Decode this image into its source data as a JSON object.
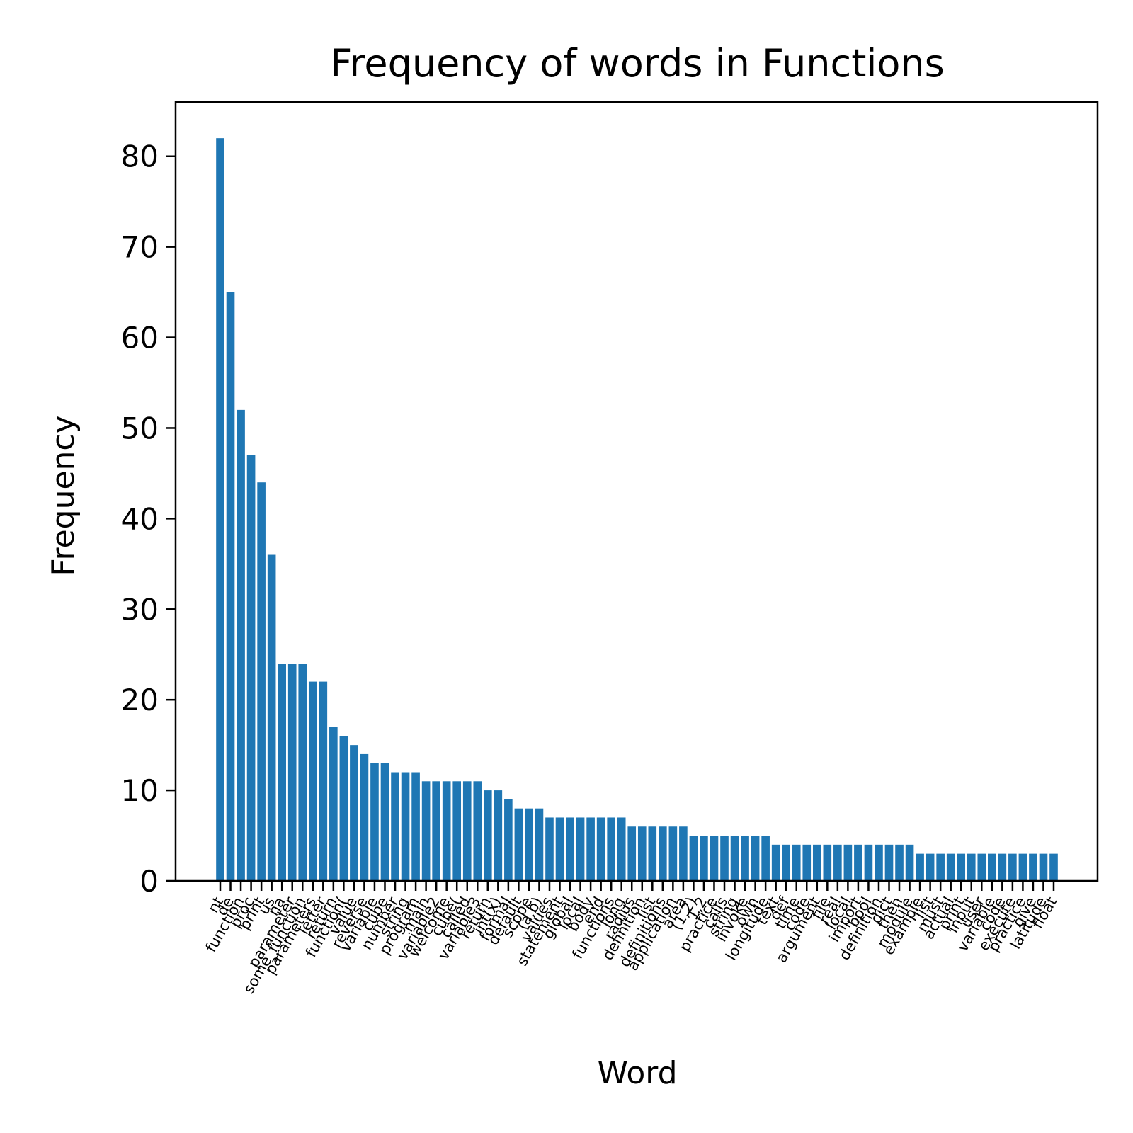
{
  "chart_data": {
    "type": "bar",
    "title": "Frequency of words in Functions",
    "xlabel": "Word",
    "ylabel": "Frequency",
    "ylim": [
      0,
      86
    ],
    "yticks": [
      0,
      10,
      20,
      30,
      40,
      50,
      60,
      70,
      80
    ],
    "bar_color": "#1f77b4",
    "categories": [
      "nt",
      "de",
      "function",
      "proc",
      "print",
      "us",
      "na",
      "parameter",
      "some_function",
      "parameters",
      "letter",
      "return",
      "function(",
      "value",
      "reverse",
      "variable",
      "cube",
      "number",
      "string",
      "program",
      "main",
      "variable2",
      "welcome",
      "cube(",
      "called",
      "variable3",
      "return",
      "int(x)",
      "formal",
      "default",
      "scope",
      "(a,b)",
      "values",
      "statement",
      "global",
      "local",
      "body",
      "end",
      "functions",
      "long",
      "radius",
      "definition",
      "list",
      "definitions",
      "application",
      "area",
      "(1,2)",
      "1,2",
      "practice",
      "calls",
      "string",
      "invoke",
      "own",
      "longitude",
      "text",
      "def",
      "time",
      "code",
      "argument",
      "file",
      "real",
      "local",
      "import",
      "bool",
      "definition",
      "dict",
      "then",
      "module",
      "example",
      "list",
      "must",
      "actual",
      "print",
      "input",
      "user",
      "variable",
      "code",
      "execute",
      "practice",
      "give",
      "latitude",
      "float"
    ],
    "values": [
      82,
      65,
      52,
      47,
      44,
      36,
      24,
      24,
      24,
      22,
      22,
      17,
      16,
      15,
      14,
      13,
      13,
      12,
      12,
      12,
      11,
      11,
      11,
      11,
      11,
      11,
      10,
      10,
      9,
      8,
      8,
      8,
      7,
      7,
      7,
      7,
      7,
      7,
      7,
      7,
      6,
      6,
      6,
      6,
      6,
      6,
      5,
      5,
      5,
      5,
      5,
      5,
      5,
      5,
      4,
      4,
      4,
      4,
      4,
      4,
      4,
      4,
      4,
      4,
      4,
      4,
      4,
      4,
      3,
      3,
      3,
      3,
      3,
      3,
      3,
      3,
      3,
      3,
      3,
      3,
      3,
      3
    ]
  }
}
